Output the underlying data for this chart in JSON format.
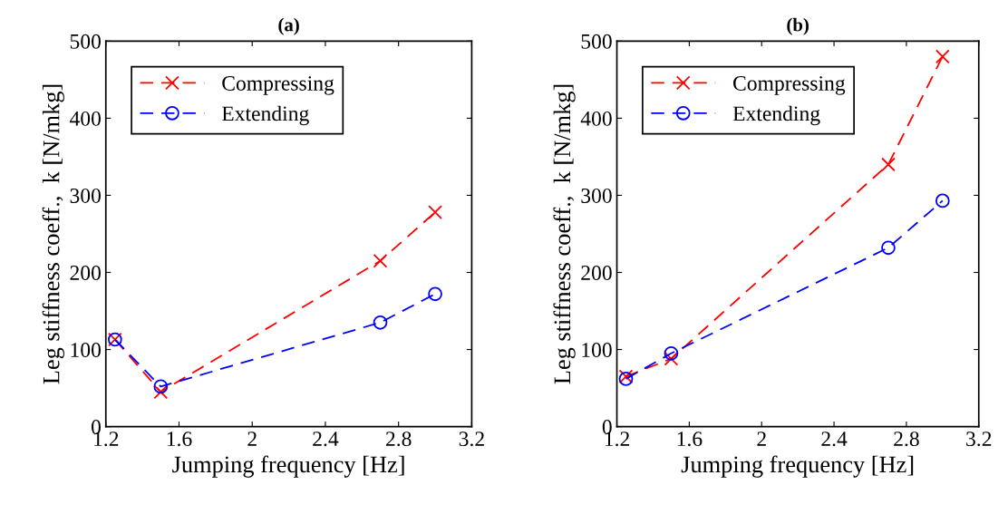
{
  "chart_data": [
    {
      "type": "line",
      "title": "(a)",
      "xlabel": "Jumping frequency [Hz]",
      "ylabel": "Leg stiffness coeff.,  k [N/mkg]",
      "x": [
        1.25,
        1.5,
        2.7,
        3.0
      ],
      "series": [
        {
          "name": "Compressing",
          "color": "#ff0000",
          "values": [
            113,
            45,
            215,
            278
          ],
          "marker": "cross"
        },
        {
          "name": "Extending",
          "color": "#0000ff",
          "values": [
            113,
            52,
            135,
            172
          ],
          "marker": "circle"
        }
      ],
      "line_style": "dashed",
      "xlim": [
        1.2,
        3.2
      ],
      "xticks": [
        1.2,
        1.6,
        2,
        2.4,
        2.8,
        3.2
      ],
      "ylim": [
        0,
        500
      ],
      "yticks": [
        0,
        100,
        200,
        300,
        400,
        500
      ],
      "legend": "top left",
      "grid": false
    },
    {
      "type": "line",
      "title": "(b)",
      "xlabel": "Jumping frequency [Hz]",
      "ylabel": "Leg stiffness coeff.,  k [N/mkg]",
      "x": [
        1.25,
        1.5,
        2.7,
        3.0
      ],
      "series": [
        {
          "name": "Compressing",
          "color": "#ff0000",
          "values": [
            65,
            88,
            340,
            480
          ],
          "marker": "cross"
        },
        {
          "name": "Extending",
          "color": "#0000ff",
          "values": [
            62,
            95,
            232,
            293
          ],
          "marker": "circle"
        }
      ],
      "line_style": "dashed",
      "xlim": [
        1.2,
        3.2
      ],
      "xticks": [
        1.2,
        1.6,
        2,
        2.4,
        2.8,
        3.2
      ],
      "ylim": [
        0,
        500
      ],
      "yticks": [
        0,
        100,
        200,
        300,
        400,
        500
      ],
      "legend": "top left",
      "grid": false
    }
  ]
}
